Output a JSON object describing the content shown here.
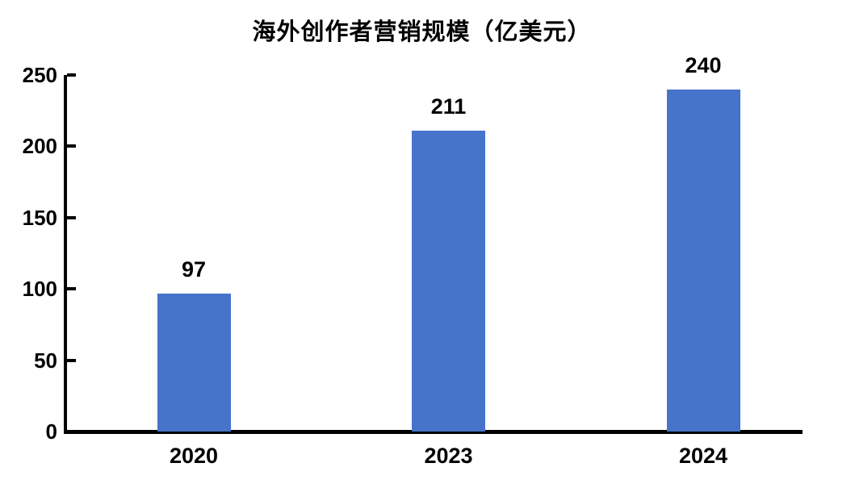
{
  "chart_data": {
    "type": "bar",
    "title": "海外创作者营销规模（亿美元）",
    "categories": [
      "2020",
      "2023",
      "2024"
    ],
    "values": [
      97,
      211,
      240
    ],
    "data_labels": [
      "97",
      "211",
      "240"
    ],
    "xlabel": "",
    "ylabel": "",
    "ylim": [
      0,
      250
    ],
    "yticks": [
      0,
      50,
      100,
      150,
      200,
      250
    ],
    "ytick_labels": [
      "0",
      "50",
      "100",
      "150",
      "200",
      "250"
    ],
    "grid": false,
    "legend_position": "none",
    "bar_color": "#4574CA",
    "axis_color": "#000000",
    "text_color": "#000000",
    "background_color": "#FFFFFF"
  }
}
